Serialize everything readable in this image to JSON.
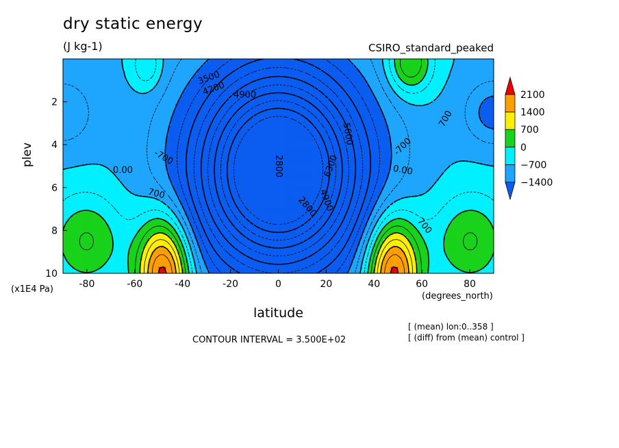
{
  "chart_data": {
    "type": "heatmap",
    "title": "dry static energy",
    "units": "(J kg-1)",
    "model_label": "CSIRO_standard_peaked",
    "xlabel": "latitude",
    "ylabel": "plev",
    "x_unit": "(degrees_north)",
    "y_unit": "(x1E4 Pa)",
    "xlim": [
      -90,
      90
    ],
    "ylim": [
      0,
      10
    ],
    "y_inverted": true,
    "x_ticks": [
      -80,
      -60,
      -40,
      -20,
      0,
      20,
      40,
      60,
      80
    ],
    "y_ticks": [
      2,
      4,
      6,
      8,
      10
    ],
    "colorbar": {
      "levels": [
        -1400,
        -700,
        0,
        700,
        1400,
        2100
      ],
      "level_labels": [
        "−1400",
        "−700",
        "0",
        "700",
        "1400",
        "2100"
      ],
      "colors": [
        "#0a5df0",
        "#1ea6ff",
        "#00f0ff",
        "#19d21b",
        "#fff000",
        "#ff9e00",
        "#ee0000"
      ]
    },
    "contour_labels": [
      "4900",
      "3500",
      "4200",
      "2800",
      "0.00",
      "700",
      "-700",
      "5600",
      "6300",
      "4900",
      "2800",
      "0.00",
      "700",
      "-700",
      "700"
    ],
    "contour_interval": "CONTOUR INTERVAL = 3.500E+02",
    "notes": [
      "[ (mean) lon:0..358 ]",
      "[ (diff) from (mean) control ]"
    ]
  }
}
